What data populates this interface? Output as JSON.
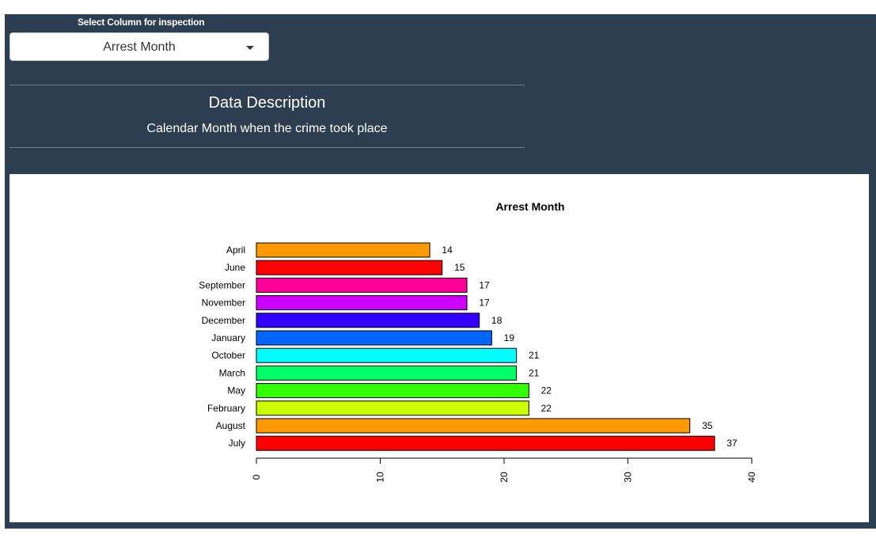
{
  "inspector": {
    "select_label": "Select Column for inspection",
    "selected_value": "Arrest Month",
    "description_heading": "Data Description",
    "description_text": "Calendar Month when the crime took place"
  },
  "colors": {
    "panel_bg": "#2c3e50",
    "chart_bg": "#ffffff"
  },
  "chart_data": {
    "type": "bar",
    "orientation": "horizontal",
    "title": "Arrest Month",
    "xlabel": "",
    "ylabel": "",
    "xlim": [
      0,
      40
    ],
    "x_ticks": [
      0,
      10,
      20,
      30,
      40
    ],
    "grid": false,
    "categories": [
      "April",
      "June",
      "September",
      "November",
      "December",
      "January",
      "October",
      "March",
      "May",
      "February",
      "August",
      "July"
    ],
    "values": [
      14,
      15,
      17,
      17,
      18,
      19,
      21,
      21,
      22,
      22,
      35,
      37
    ],
    "bar_colors": [
      "#ff9900",
      "#ff0000",
      "#ff0099",
      "#cc00ff",
      "#3300ff",
      "#0066ff",
      "#00ffff",
      "#00ff66",
      "#33ff00",
      "#ccff00",
      "#ff9900",
      "#ff0000"
    ]
  }
}
